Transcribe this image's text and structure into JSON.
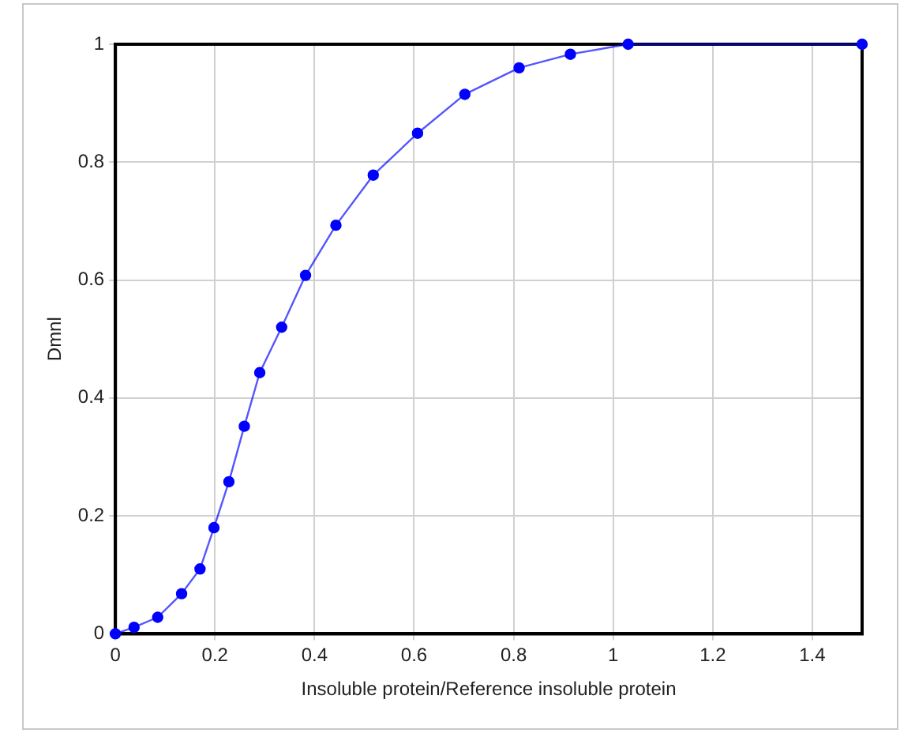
{
  "chart_data": {
    "type": "line",
    "xlabel": "Insoluble protein/Reference insoluble protein",
    "ylabel": "Dmnl",
    "x": [
      0,
      0.0375,
      0.085,
      0.133,
      0.17,
      0.198,
      0.228,
      0.259,
      0.29,
      0.334,
      0.382,
      0.443,
      0.518,
      0.607,
      0.702,
      0.811,
      0.914,
      1.03,
      1.5
    ],
    "series": [
      {
        "color": "#0000ff",
        "values": [
          0,
          0.011,
          0.028,
          0.068,
          0.11,
          0.18,
          0.258,
          0.352,
          0.443,
          0.52,
          0.608,
          0.693,
          0.778,
          0.849,
          0.915,
          0.96,
          0.983,
          1,
          1
        ]
      }
    ],
    "xlim": [
      0,
      1.5
    ],
    "xticks": [
      0,
      0.2,
      0.4,
      0.6,
      0.8,
      1,
      1.2,
      1.4
    ],
    "ylim": [
      0,
      1
    ],
    "yticks": [
      0,
      0.2,
      0.4,
      0.6,
      0.8,
      1
    ],
    "grid": true,
    "legend": false,
    "marker": "circle",
    "line_style": "solid"
  }
}
